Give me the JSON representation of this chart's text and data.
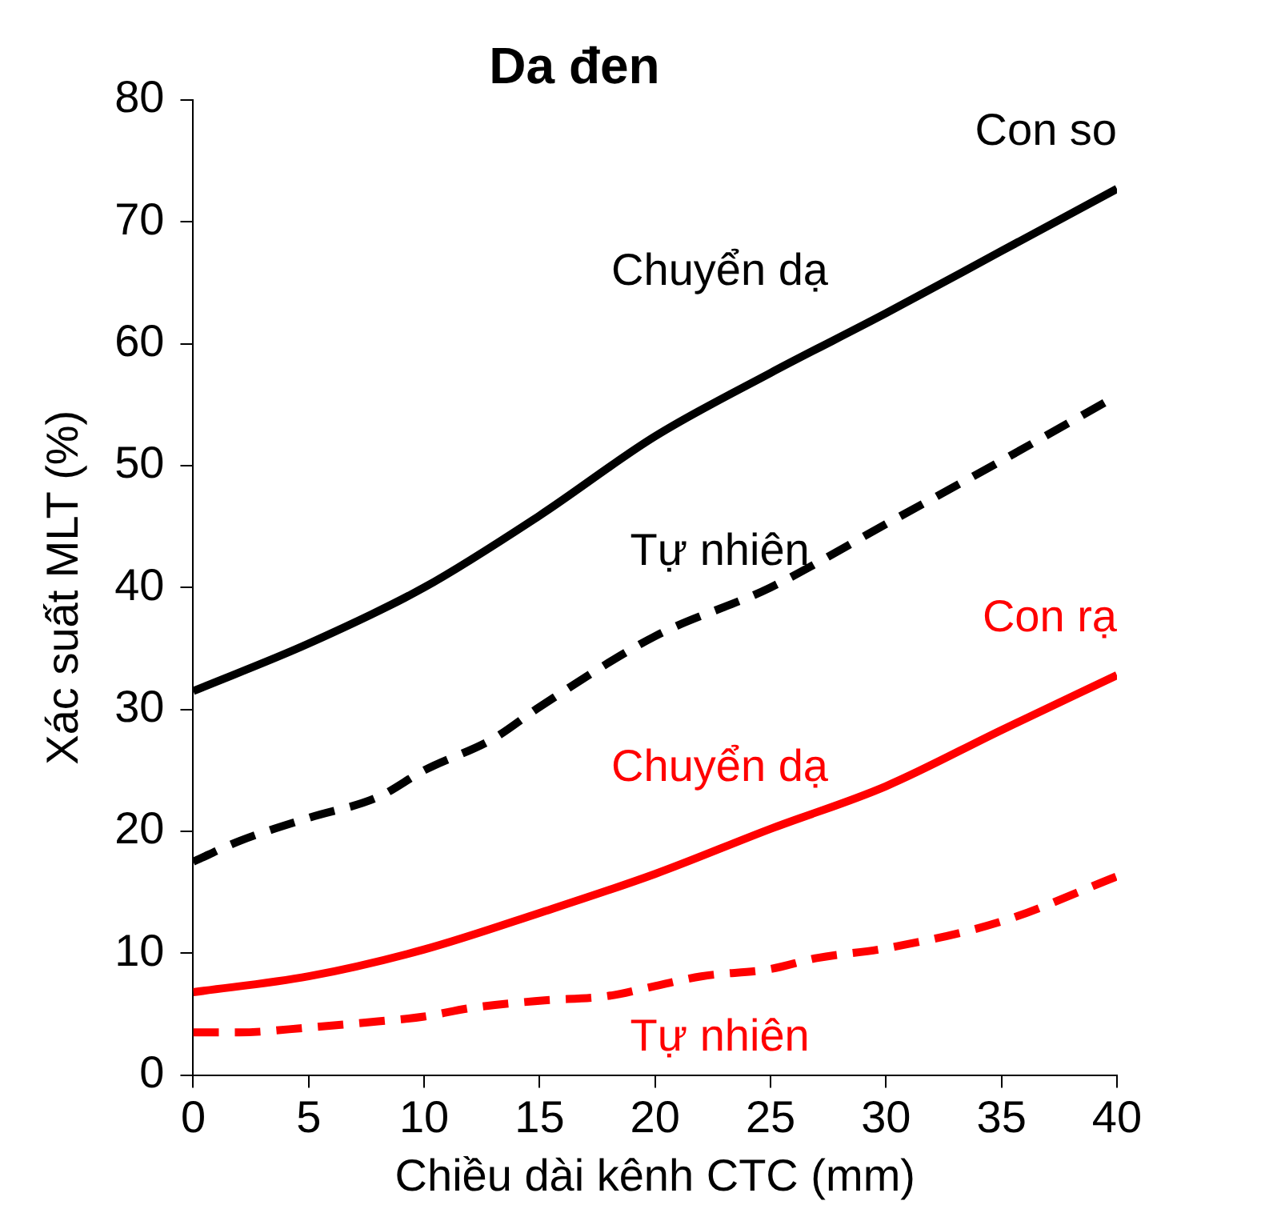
{
  "chart_data": {
    "type": "line",
    "title": "Da đen",
    "xlabel": "Chiều dài kênh CTC (mm)",
    "ylabel": "Xác suất MLT (%)",
    "xlim": [
      0,
      40
    ],
    "xticks": [
      0,
      5,
      10,
      15,
      20,
      25,
      30,
      35,
      40
    ],
    "ylim": [
      0,
      80
    ],
    "yticks": [
      0,
      10,
      20,
      30,
      40,
      50,
      60,
      70,
      80
    ],
    "grid": false,
    "legend": false,
    "marker": "none",
    "series": [
      {
        "name": "Chuyển dạ",
        "color": "#000000",
        "line_style": "solid",
        "x": [
          0,
          5,
          10,
          15,
          20,
          25,
          30,
          35,
          40
        ],
        "values": [
          31.5,
          35.4,
          40,
          45.9,
          52.4,
          57.6,
          62.5,
          67.6,
          72.7
        ]
      },
      {
        "name": "Tự nhiên",
        "color": "#000000",
        "line_style": "dashed",
        "x": [
          0,
          2,
          5,
          8,
          10,
          13,
          15,
          20,
          25,
          30,
          35,
          39.5
        ],
        "values": [
          17.5,
          19.2,
          21.1,
          22.8,
          25,
          27.6,
          30.2,
          36,
          40,
          45.2,
          50.4,
          55.2
        ]
      },
      {
        "name": "Chuyển dạ",
        "color": "#ff0000",
        "line_style": "solid",
        "x": [
          0,
          5,
          10,
          15,
          20,
          25,
          30,
          35,
          40
        ],
        "values": [
          6.8,
          8.1,
          10.3,
          13.3,
          16.5,
          20.2,
          23.7,
          28.3,
          32.8
        ]
      },
      {
        "name": "Tự nhiên",
        "color": "#ff0000",
        "line_style": "dashed",
        "x": [
          0,
          2,
          5,
          8,
          10,
          12,
          15,
          18,
          20,
          22,
          25,
          27,
          30,
          35,
          40
        ],
        "values": [
          3.5,
          3.5,
          3.9,
          4.4,
          4.8,
          5.5,
          6.1,
          6.5,
          7.3,
          8.1,
          8.7,
          9.6,
          10.4,
          12.6,
          16.3
        ]
      }
    ],
    "annotations": [
      "Con so",
      "Con rạ"
    ]
  }
}
